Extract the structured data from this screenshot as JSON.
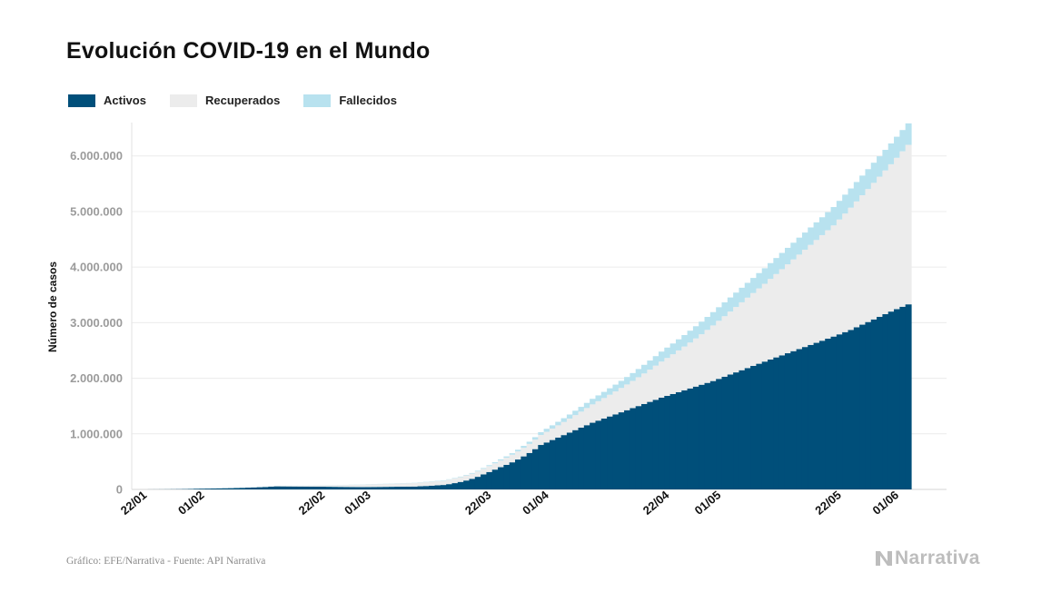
{
  "title": "Evolución COVID-19 en el Mundo",
  "legend": [
    {
      "label": "Activos",
      "color": "#004f7a"
    },
    {
      "label": "Recuperados",
      "color": "#ececec"
    },
    {
      "label": "Fallecidos",
      "color": "#b8e2ef"
    }
  ],
  "source": "Gráfico: EFE/Narrativa - Fuente: API Narrativa",
  "brand": "Narrativa",
  "chart_data": {
    "type": "area",
    "stacked": true,
    "title": "Evolución COVID-19 en el Mundo",
    "xlabel": "",
    "ylabel": "Número de casos",
    "ylim": [
      0,
      6600000
    ],
    "y_ticks": [
      0,
      1000000,
      2000000,
      3000000,
      4000000,
      5000000,
      6000000
    ],
    "y_tick_labels": [
      "0",
      "1.000.000",
      "2.000.000",
      "3.000.000",
      "4.000.000",
      "5.000.000",
      "6.000.000"
    ],
    "x_tick_labels": [
      "22/01",
      "01/02",
      "22/02",
      "01/03",
      "22/03",
      "01/04",
      "22/04",
      "01/05",
      "22/05",
      "01/06"
    ],
    "x_tick_dates": [
      "2020-01-22",
      "2020-02-01",
      "2020-02-22",
      "2020-03-01",
      "2020-03-22",
      "2020-04-01",
      "2020-04-22",
      "2020-05-01",
      "2020-05-22",
      "2020-06-01"
    ],
    "x_start": "2020-01-22",
    "x_end": "2020-06-04",
    "grid": true,
    "legend_position": "top-left",
    "key_dates": [
      "2020-01-22",
      "2020-02-01",
      "2020-02-15",
      "2020-02-22",
      "2020-03-01",
      "2020-03-10",
      "2020-03-15",
      "2020-03-22",
      "2020-03-25",
      "2020-04-01",
      "2020-04-10",
      "2020-04-22",
      "2020-05-01",
      "2020-05-10",
      "2020-05-22",
      "2020-05-25",
      "2020-06-01",
      "2020-06-04"
    ],
    "series": [
      {
        "name": "Activos",
        "values": [
          500,
          12000,
          55000,
          50000,
          42000,
          52000,
          80000,
          270000,
          400000,
          800000,
          1200000,
          1650000,
          1950000,
          2300000,
          2750000,
          2870000,
          3200000,
          3330000
        ]
      },
      {
        "name": "Recuperados",
        "values": [
          30,
          300,
          9000,
          22000,
          45000,
          63000,
          77000,
          100000,
          120000,
          180000,
          330000,
          650000,
          1000000,
          1400000,
          2000000,
          2200000,
          2650000,
          2870000
        ]
      },
      {
        "name": "Fallecidos",
        "values": [
          17,
          300,
          1500,
          2500,
          3000,
          4300,
          6500,
          14500,
          21000,
          50000,
          100000,
          180000,
          240000,
          280000,
          330000,
          345000,
          375000,
          386000
        ]
      }
    ]
  }
}
